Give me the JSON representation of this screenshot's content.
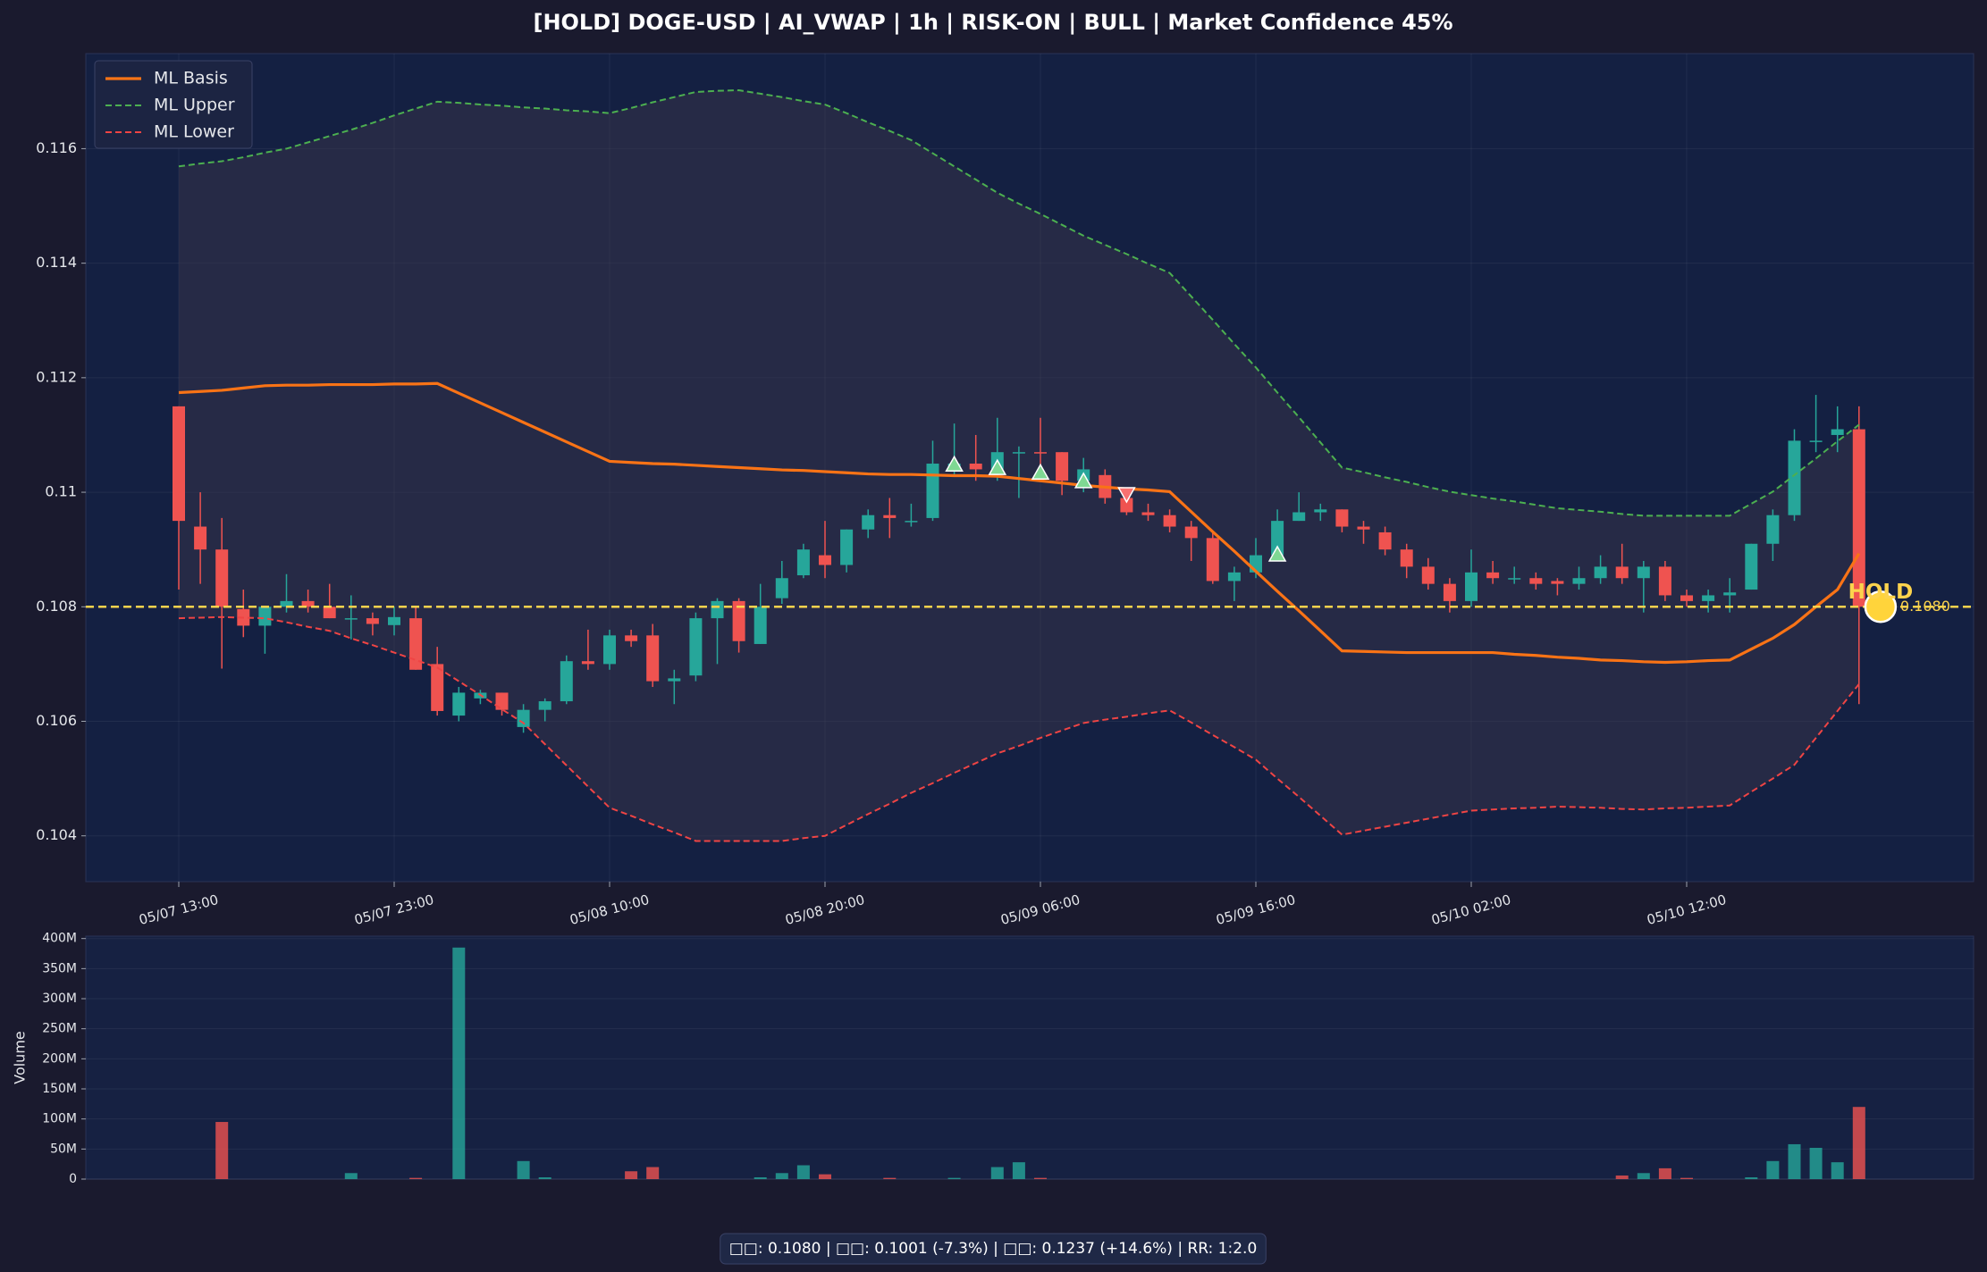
{
  "chart_data": [
    {
      "type": "candlestick",
      "title": "[HOLD] DOGE-USD  |  AI_VWAP | 1h  |  RISK-ON | BULL  |  Market Confidence 45%",
      "categories": [
        "05/07 13:00",
        null,
        null,
        null,
        null,
        null,
        null,
        null,
        null,
        null,
        "05/07 23:00",
        null,
        null,
        null,
        null,
        null,
        null,
        null,
        null,
        null,
        "05/08 10:00",
        null,
        null,
        null,
        null,
        null,
        null,
        null,
        null,
        null,
        "05/08 20:00",
        null,
        null,
        null,
        null,
        null,
        null,
        null,
        null,
        null,
        "05/09 06:00",
        null,
        null,
        null,
        null,
        null,
        null,
        null,
        null,
        null,
        "05/09 16:00",
        null,
        null,
        null,
        null,
        null,
        null,
        null,
        null,
        null,
        "05/10 02:00",
        null,
        null,
        null,
        null,
        null,
        null,
        null,
        null,
        null,
        "05/10 12:00",
        null,
        null,
        null,
        null,
        null,
        null,
        null,
        null
      ],
      "open": [
        0.1115,
        0.1094,
        0.109,
        0.10796,
        0.10767,
        0.108,
        0.1081,
        0.108,
        0.1078,
        0.1078,
        0.10768,
        0.1078,
        0.107,
        0.1061,
        0.1064,
        0.1065,
        0.1059,
        0.1062,
        0.10635,
        0.10705,
        0.107,
        0.1075,
        0.1075,
        0.1067,
        0.1068,
        0.1078,
        0.1081,
        0.10735,
        0.10815,
        0.10855,
        0.1089,
        0.10873,
        0.10935,
        0.1096,
        0.1095,
        0.10955,
        0.1104,
        0.1105,
        0.1104,
        0.1107,
        0.1107,
        0.1107,
        0.1102,
        0.1103,
        0.1099,
        0.10965,
        0.1096,
        0.1094,
        0.1092,
        0.10845,
        0.1086,
        0.1089,
        0.1095,
        0.10965,
        0.1097,
        0.1094,
        0.1093,
        0.109,
        0.1087,
        0.1084,
        0.1081,
        0.1086,
        0.1085,
        0.1085,
        0.10845,
        0.1084,
        0.1085,
        0.1087,
        0.1085,
        0.1087,
        0.1082,
        0.1081,
        0.1082,
        0.1083,
        0.1091,
        0.1096,
        0.1109,
        0.111,
        0.1111
      ],
      "high": [
        0.1115,
        0.11,
        0.10955,
        0.1083,
        0.108,
        0.10857,
        0.1083,
        0.1084,
        0.1082,
        0.1079,
        0.108,
        0.108,
        0.1073,
        0.1066,
        0.10655,
        0.1065,
        0.1063,
        0.1064,
        0.10715,
        0.1076,
        0.1076,
        0.1076,
        0.1077,
        0.1069,
        0.1079,
        0.10815,
        0.10815,
        0.1084,
        0.1088,
        0.1091,
        0.1095,
        0.10935,
        0.1097,
        0.1099,
        0.1098,
        0.1109,
        0.1112,
        0.111,
        0.1113,
        0.1108,
        0.1113,
        0.1107,
        0.1106,
        0.1104,
        0.11,
        0.1098,
        0.1097,
        0.1095,
        0.1093,
        0.1087,
        0.1092,
        0.1097,
        0.11,
        0.1098,
        0.1097,
        0.1095,
        0.1094,
        0.1091,
        0.10885,
        0.1085,
        0.109,
        0.1088,
        0.1087,
        0.1086,
        0.1085,
        0.1087,
        0.1089,
        0.1091,
        0.1088,
        0.1088,
        0.1083,
        0.1083,
        0.1085,
        0.1091,
        0.1097,
        0.1111,
        0.1117,
        0.1115,
        0.1115
      ],
      "low": [
        0.1083,
        0.1084,
        0.10692,
        0.10747,
        0.10718,
        0.1079,
        0.1079,
        0.1078,
        0.10743,
        0.1075,
        0.1075,
        0.1069,
        0.1061,
        0.106,
        0.1063,
        0.1061,
        0.1058,
        0.106,
        0.1063,
        0.1069,
        0.1069,
        0.1073,
        0.1066,
        0.1063,
        0.1067,
        0.107,
        0.1072,
        0.10735,
        0.10805,
        0.1085,
        0.1085,
        0.1086,
        0.1092,
        0.1092,
        0.1094,
        0.1095,
        0.1103,
        0.1102,
        0.1102,
        0.1099,
        0.1102,
        0.10995,
        0.11,
        0.1098,
        0.1096,
        0.1095,
        0.1093,
        0.1088,
        0.1084,
        0.1081,
        0.1085,
        0.1088,
        0.1095,
        0.1095,
        0.1093,
        0.1091,
        0.1089,
        0.1085,
        0.1083,
        0.1079,
        0.108,
        0.1084,
        0.1084,
        0.1083,
        0.1082,
        0.1083,
        0.1084,
        0.1084,
        0.1079,
        0.1081,
        0.108,
        0.1079,
        0.1079,
        0.1083,
        0.1088,
        0.1095,
        0.1107,
        0.1107,
        0.1063
      ],
      "close": [
        0.1095,
        0.109,
        0.108,
        0.10767,
        0.108,
        0.1081,
        0.108,
        0.1078,
        0.1078,
        0.1077,
        0.10782,
        0.1069,
        0.10618,
        0.1065,
        0.1065,
        0.1062,
        0.1062,
        0.10635,
        0.10705,
        0.107,
        0.1075,
        0.1074,
        0.1067,
        0.10675,
        0.1078,
        0.1081,
        0.1074,
        0.108,
        0.1085,
        0.109,
        0.10873,
        0.10935,
        0.1096,
        0.10955,
        0.1095,
        0.1105,
        0.1105,
        0.1104,
        0.1107,
        0.1107,
        0.11068,
        0.1102,
        0.1104,
        0.1099,
        0.10965,
        0.1096,
        0.1094,
        0.1092,
        0.10845,
        0.1086,
        0.1089,
        0.1095,
        0.10965,
        0.1097,
        0.1094,
        0.10935,
        0.109,
        0.1087,
        0.1084,
        0.1081,
        0.1086,
        0.1085,
        0.1085,
        0.1084,
        0.1084,
        0.1085,
        0.1087,
        0.1085,
        0.1087,
        0.1082,
        0.1081,
        0.1082,
        0.10825,
        0.1091,
        0.1096,
        0.1109,
        0.1109,
        0.1111,
        0.108
      ],
      "up_color": "#26a69a",
      "down_color": "#ef5350",
      "series": [
        {
          "name": "ML Basis",
          "color": "#f97316",
          "style": "solid",
          "values": [
            0.11174,
            0.11176,
            0.11178,
            0.11182,
            0.11186,
            0.11187,
            0.11187,
            0.11188,
            0.11188,
            0.11188,
            0.11189,
            0.11189,
            0.1119,
            0.11173,
            0.11156,
            0.11139,
            0.11122,
            0.11105,
            0.11088,
            0.11071,
            0.11054,
            0.11052,
            0.1105,
            0.11049,
            0.11047,
            0.11045,
            0.11043,
            0.11041,
            0.11039,
            0.11038,
            0.11036,
            0.11034,
            0.11032,
            0.11031,
            0.11031,
            0.1103,
            0.11029,
            0.11029,
            0.11028,
            0.11024,
            0.1102,
            0.11016,
            0.11012,
            0.11009,
            0.11006,
            0.11004,
            0.11001,
            0.10966,
            0.10931,
            0.10897,
            0.10862,
            0.10827,
            0.10793,
            0.10758,
            0.10723,
            0.10722,
            0.10721,
            0.1072,
            0.1072,
            0.1072,
            0.1072,
            0.1072,
            0.10717,
            0.10715,
            0.10712,
            0.1071,
            0.10707,
            0.10706,
            0.10704,
            0.10703,
            0.10704,
            0.10706,
            0.10707,
            0.10726,
            0.10745,
            0.10769,
            0.108,
            0.1083,
            0.10893
          ]
        },
        {
          "name": "ML Upper",
          "color": "#4caf50",
          "style": "dashed",
          "values": [
            0.11569,
            0.11574,
            0.11578,
            0.11585,
            0.11593,
            0.116,
            0.11611,
            0.11622,
            0.11633,
            0.11645,
            0.11658,
            0.1167,
            0.11682,
            0.1168,
            0.11677,
            0.11675,
            0.11672,
            0.1167,
            0.11667,
            0.11665,
            0.11662,
            0.11671,
            0.11681,
            0.1169,
            0.11699,
            0.11701,
            0.11702,
            0.11696,
            0.1169,
            0.11683,
            0.11677,
            0.11662,
            0.11646,
            0.11631,
            0.11615,
            0.11592,
            0.11569,
            0.11546,
            0.11523,
            0.11504,
            0.11486,
            0.11467,
            0.11448,
            0.11432,
            0.11416,
            0.11399,
            0.11383,
            0.11342,
            0.11301,
            0.11259,
            0.11218,
            0.11174,
            0.11131,
            0.11087,
            0.11043,
            0.11035,
            0.11026,
            0.11018,
            0.11009,
            0.11001,
            0.10995,
            0.10989,
            0.10984,
            0.10978,
            0.10972,
            0.10969,
            0.10966,
            0.10962,
            0.10959,
            0.10959,
            0.10959,
            0.10959,
            0.10959,
            0.1098,
            0.11001,
            0.1103,
            0.11059,
            0.11089,
            0.11118
          ]
        },
        {
          "name": "ML Lower",
          "color": "#ef4444",
          "style": "dashed",
          "values": [
            0.1078,
            0.10781,
            0.10782,
            0.10781,
            0.1078,
            0.10773,
            0.10765,
            0.10758,
            0.10745,
            0.10733,
            0.1072,
            0.10707,
            0.10694,
            0.1067,
            0.10646,
            0.10621,
            0.10597,
            0.1056,
            0.10523,
            0.10486,
            0.10449,
            0.10435,
            0.1042,
            0.10406,
            0.10391,
            0.10391,
            0.10391,
            0.10391,
            0.10391,
            0.10396,
            0.104,
            0.10419,
            0.10438,
            0.10456,
            0.10475,
            0.10492,
            0.1051,
            0.10527,
            0.10544,
            0.10557,
            0.10571,
            0.10584,
            0.10597,
            0.10603,
            0.10608,
            0.10614,
            0.10619,
            0.10598,
            0.10576,
            0.10555,
            0.10533,
            0.105,
            0.10468,
            0.10435,
            0.10402,
            0.10409,
            0.10416,
            0.10423,
            0.1043,
            0.10437,
            0.10444,
            0.10446,
            0.10448,
            0.10449,
            0.10451,
            0.1045,
            0.10449,
            0.10447,
            0.10446,
            0.10448,
            0.10449,
            0.10451,
            0.10453,
            0.10477,
            0.105,
            0.10524,
            0.10571,
            0.10618,
            0.10665
          ]
        }
      ],
      "buy_signals": [
        null,
        null,
        null,
        null,
        null,
        null,
        null,
        null,
        null,
        null,
        null,
        null,
        null,
        null,
        null,
        null,
        null,
        null,
        null,
        null,
        null,
        null,
        null,
        null,
        null,
        null,
        null,
        null,
        null,
        null,
        null,
        null,
        null,
        null,
        null,
        null,
        0.11048,
        null,
        0.11042,
        null,
        0.11034,
        null,
        0.11019,
        null,
        null,
        null,
        null,
        null,
        null,
        null,
        null,
        0.10891,
        null,
        null,
        null,
        null,
        null,
        null,
        null,
        null,
        null,
        null,
        null,
        null,
        null,
        null,
        null,
        null,
        null,
        null,
        null,
        null,
        null,
        null,
        null,
        null,
        null,
        null,
        null
      ],
      "sell_signals": [
        null,
        null,
        null,
        null,
        null,
        null,
        null,
        null,
        null,
        null,
        null,
        null,
        null,
        null,
        null,
        null,
        null,
        null,
        null,
        null,
        null,
        null,
        null,
        null,
        null,
        null,
        null,
        null,
        null,
        null,
        null,
        null,
        null,
        null,
        null,
        null,
        null,
        null,
        null,
        null,
        null,
        null,
        null,
        null,
        0.10997,
        null,
        null,
        null,
        null,
        null,
        null,
        null,
        null,
        null,
        null,
        null,
        null,
        null,
        null,
        null,
        null,
        null,
        null,
        null,
        null,
        null,
        null,
        null,
        null,
        null,
        null,
        null,
        null,
        null,
        null,
        null,
        null,
        null,
        null
      ],
      "signal": {
        "label": "HOLD",
        "value": 0.108,
        "value_label": "0.1080",
        "color": "#fcd34d"
      },
      "ylim": [
        0.1032,
        0.11766
      ],
      "yticks": [
        0.104,
        0.106,
        0.108,
        0.11,
        0.112,
        0.114,
        0.116
      ],
      "grid": true,
      "legend": "upper left"
    },
    {
      "type": "bar",
      "ylabel": "Volume",
      "values": [
        0,
        0,
        95000000,
        0,
        0,
        0,
        0,
        0,
        10000000,
        0,
        0,
        2000000,
        0,
        385000000,
        0,
        0,
        30000000,
        3000000,
        0,
        0,
        0,
        13000000,
        20000000,
        0,
        0,
        0,
        0,
        3000000,
        10000000,
        23000000,
        8000000,
        0,
        0,
        2000000,
        0,
        0,
        2000000,
        0,
        20000000,
        28000000,
        2000000,
        0,
        0,
        0,
        0,
        0,
        0,
        0,
        0,
        0,
        0,
        0,
        0,
        0,
        0,
        0,
        0,
        0,
        0,
        0,
        0,
        0,
        0,
        0,
        0,
        0,
        0,
        6000000,
        10000000,
        18000000,
        2000000,
        0,
        0,
        3000000,
        30000000,
        58000000,
        52000000,
        28000000,
        120000000
      ],
      "ylim": [
        0,
        404000000
      ],
      "yticks": [
        0,
        {
          "value": 50000000,
          "label": "50M"
        },
        {
          "value": 100000000,
          "label": "100M"
        },
        {
          "value": 150000000,
          "label": "150M"
        },
        {
          "value": 200000000,
          "label": "200M"
        },
        {
          "value": 250000000,
          "label": "250M"
        },
        {
          "value": 300000000,
          "label": "300M"
        },
        {
          "value": 350000000,
          "label": "350M"
        },
        {
          "value": 400000000,
          "label": "400M"
        }
      ],
      "grid": true
    }
  ],
  "footer": "□□: 0.1080  |  □□: 0.1001 (-7.3%)  |  □□: 0.1237 (+14.6%)  |  RR: 1:2.0"
}
